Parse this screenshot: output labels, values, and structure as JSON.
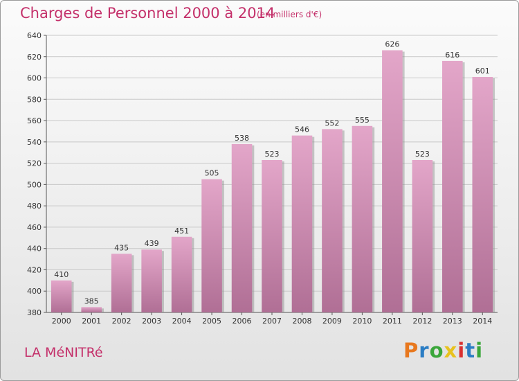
{
  "header": {
    "title": "Charges de Personnel 2000 à 2014",
    "subtitle": "(en milliers d'€)"
  },
  "footer": {
    "commune": "LA MéNITRé",
    "logo_letters": [
      "P",
      "r",
      "o",
      "x",
      "i",
      "t",
      "i"
    ],
    "logo_colors": [
      "#e8781e",
      "#2b7dc4",
      "#3aa63a",
      "#e8c21e",
      "#d93030",
      "#2b7dc4",
      "#3aa63a"
    ]
  },
  "chart_data": {
    "type": "bar",
    "categories": [
      "2000",
      "2001",
      "2002",
      "2003",
      "2004",
      "2005",
      "2006",
      "2007",
      "2008",
      "2009",
      "2010",
      "2011",
      "2012",
      "2013",
      "2014"
    ],
    "values": [
      410,
      385,
      435,
      439,
      451,
      505,
      538,
      523,
      546,
      552,
      555,
      626,
      523,
      616,
      601
    ],
    "ylim": [
      380,
      640
    ],
    "yticks": [
      380,
      400,
      420,
      440,
      460,
      480,
      500,
      520,
      540,
      560,
      580,
      600,
      620,
      640
    ],
    "grid": true,
    "bar_color_top": "#e3a6c9",
    "bar_color_bottom": "#b06f95",
    "bar_shadow": "#8a8a8a"
  }
}
